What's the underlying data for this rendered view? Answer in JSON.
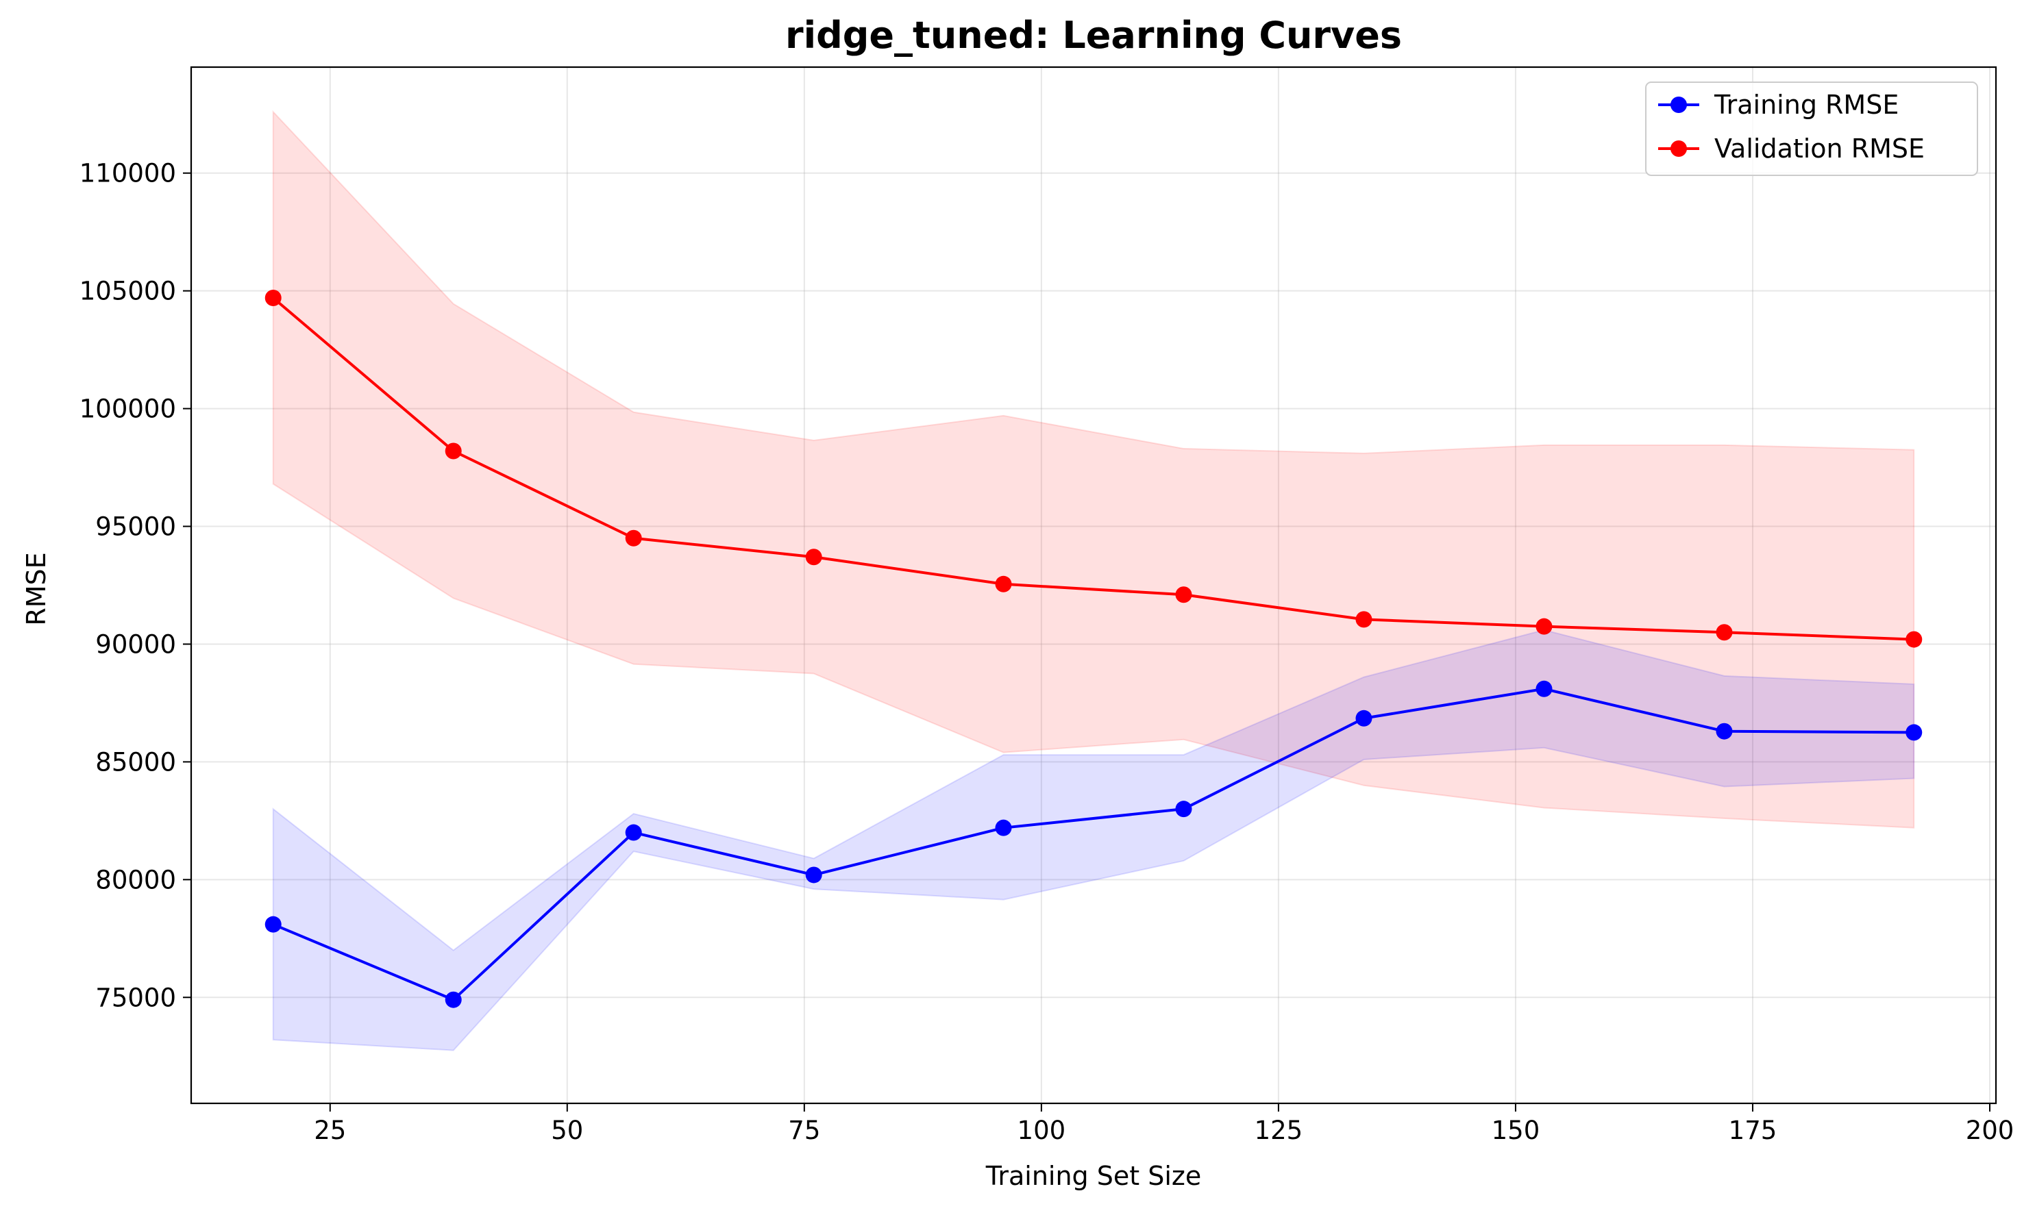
{
  "chart_data": {
    "type": "line",
    "title": "ridge_tuned: Learning Curves",
    "xlabel": "Training Set Size",
    "ylabel": "RMSE",
    "xlim": [
      10.35,
      200.65
    ],
    "ylim": [
      70500,
      114500
    ],
    "xticks": [
      25,
      50,
      75,
      100,
      125,
      150,
      175,
      200
    ],
    "yticks": [
      75000,
      80000,
      85000,
      90000,
      95000,
      100000,
      105000,
      110000
    ],
    "grid": true,
    "legend_position": "top-right",
    "x": [
      19,
      38,
      57,
      76,
      96,
      115,
      134,
      153,
      172,
      192
    ],
    "series": [
      {
        "name": "Training RMSE",
        "color": "#0000ff",
        "band_color": "#0000ff",
        "values": [
          78100,
          74900,
          82000,
          80200,
          82200,
          83000,
          86850,
          88100,
          86300,
          86250
        ],
        "band_upper": [
          83000,
          77000,
          82800,
          80900,
          85300,
          85300,
          88600,
          90600,
          88650,
          88300
        ],
        "band_lower": [
          73200,
          72750,
          81200,
          79600,
          79150,
          80800,
          85100,
          85600,
          83950,
          84300
        ]
      },
      {
        "name": "Validation RMSE",
        "color": "#ff0000",
        "band_color": "#ff0000",
        "values": [
          104700,
          98200,
          94500,
          93700,
          92550,
          92100,
          91050,
          90750,
          90500,
          90200
        ],
        "band_upper": [
          112600,
          104450,
          99850,
          98650,
          99700,
          98300,
          98100,
          98450,
          98450,
          98250
        ],
        "band_lower": [
          96800,
          91950,
          89150,
          88750,
          85400,
          85950,
          84000,
          83050,
          82600,
          82200
        ]
      }
    ]
  }
}
